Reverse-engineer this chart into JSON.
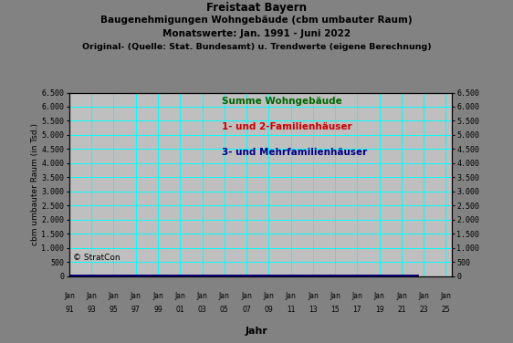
{
  "title_line1": "Freistaat Bayern",
  "title_line2": "Baugenehmigungen Wohngebäude (cbm umbauter Raum)",
  "title_line3": "Monatswerte: Jan. 1991 - Juni 2022",
  "title_line4": "Original- (Quelle: Stat. Bundesamt) u. Trendwerte (eigene Berechnung)",
  "ylabel_left": "cbm umbauter Raum (in Tsd.)",
  "xlabel": "Jahr",
  "background_outer": "#828282",
  "background_plot": "#bfbfbf",
  "grid_color": "#00ffff",
  "ylim": [
    0,
    6500
  ],
  "yticks": [
    0,
    500,
    1000,
    1500,
    2000,
    2500,
    3000,
    3500,
    4000,
    4500,
    5000,
    5500,
    6000,
    6500
  ],
  "ytick_labels": [
    "0",
    "500",
    "1.000",
    "1.500",
    "2.000",
    "2.500",
    "3.000",
    "3.500",
    "4.000",
    "4.500",
    "5.000",
    "5.500",
    "6.000",
    "6.500"
  ],
  "legend_summe": "Summe Wohngebäude",
  "legend_12fam": "1- und 2-Familienhäuser",
  "legend_mfam": "3- und Mehrfamilienhäuser",
  "color_summe_raw": "#00cc00",
  "color_12fam_raw": "#ff0000",
  "color_mfam_raw": "#0000ff",
  "color_summe_trend": "#006600",
  "color_12fam_trend": "#cc0000",
  "color_mfam_trend": "#000088",
  "watermark": "© StratCon",
  "x_tick_years": [
    1991,
    1993,
    1995,
    1997,
    1999,
    2001,
    2003,
    2005,
    2007,
    2009,
    2011,
    2013,
    2015,
    2017,
    2019,
    2021,
    2023,
    2025
  ],
  "xlim": [
    1991,
    2025.5
  ]
}
